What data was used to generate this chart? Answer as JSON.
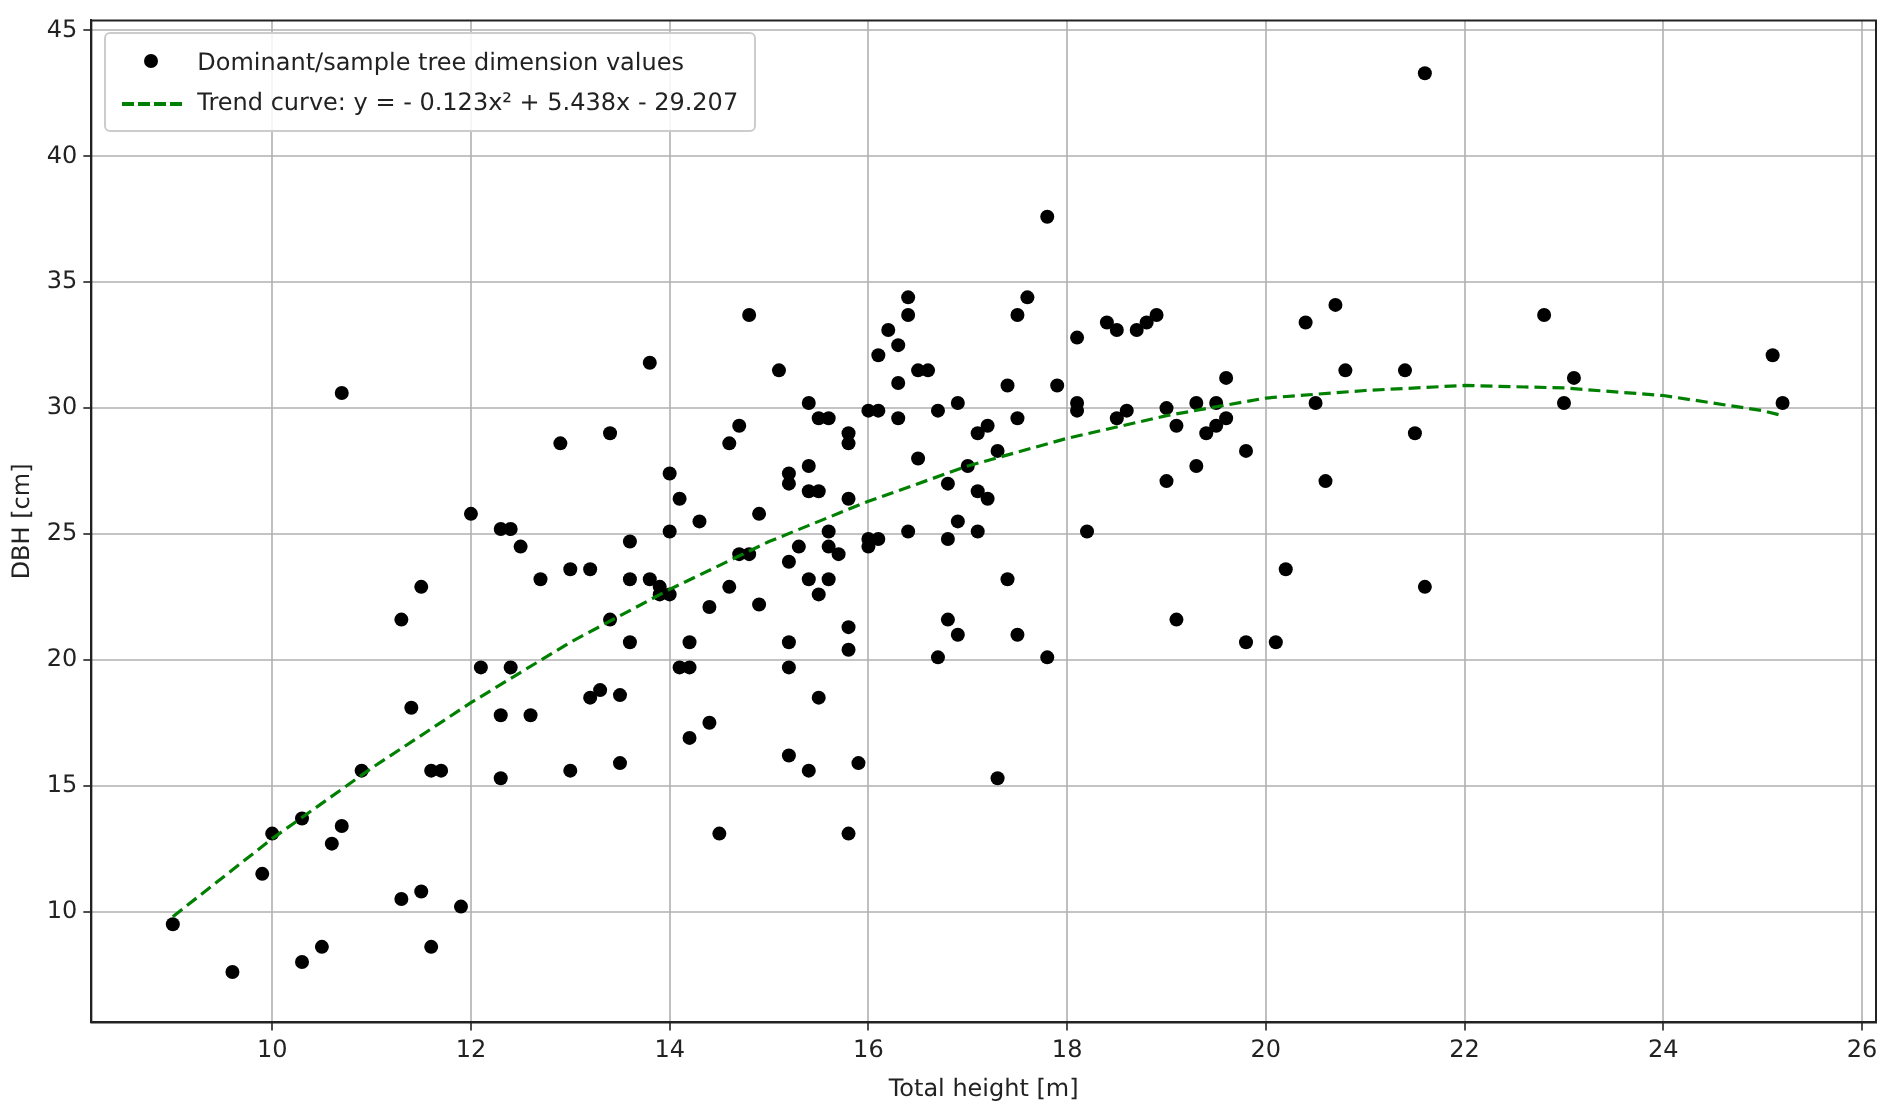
{
  "chart_data": {
    "type": "scatter",
    "xlabel": "Total height [m]",
    "ylabel": "DBH [cm]",
    "xlim": [
      8.18,
      26.14
    ],
    "ylim": [
      5.6,
      45.4
    ],
    "xticks": [
      10,
      12,
      14,
      16,
      18,
      20,
      22,
      24,
      26
    ],
    "yticks": [
      10,
      15,
      20,
      25,
      30,
      35,
      40,
      45
    ],
    "grid": true,
    "legend": "top left",
    "series": [
      {
        "name": "Dominant/sample tree dimension values",
        "color": "#000000",
        "marker": "circle",
        "x": [
          9.0,
          9.6,
          9.9,
          10.0,
          10.3,
          10.3,
          10.5,
          10.6,
          10.7,
          10.7,
          10.9,
          11.3,
          11.3,
          11.4,
          11.5,
          11.5,
          11.6,
          11.6,
          11.7,
          11.9,
          12.0,
          12.1,
          12.3,
          12.3,
          12.3,
          12.4,
          12.4,
          12.5,
          12.6,
          12.7,
          12.9,
          13.0,
          13.0,
          13.2,
          13.2,
          13.3,
          13.4,
          13.4,
          13.5,
          13.5,
          13.6,
          13.6,
          13.6,
          13.8,
          13.8,
          13.9,
          13.9,
          14.0,
          14.0,
          14.0,
          14.1,
          14.1,
          14.2,
          14.2,
          14.2,
          14.3,
          14.4,
          14.4,
          14.5,
          14.6,
          14.6,
          14.7,
          14.7,
          14.8,
          14.8,
          14.9,
          14.9,
          15.1,
          15.2,
          15.2,
          15.2,
          15.2,
          15.2,
          15.2,
          15.3,
          15.4,
          15.4,
          15.4,
          15.4,
          15.4,
          15.5,
          15.5,
          15.5,
          15.5,
          15.6,
          15.6,
          15.6,
          15.6,
          15.7,
          15.8,
          15.8,
          15.8,
          15.8,
          15.8,
          15.8,
          15.9,
          16.0,
          16.0,
          16.0,
          16.1,
          16.1,
          16.1,
          16.2,
          16.3,
          16.3,
          16.3,
          16.4,
          16.4,
          16.4,
          16.5,
          16.5,
          16.6,
          16.7,
          16.7,
          16.8,
          16.8,
          16.8,
          16.9,
          16.9,
          16.9,
          17.0,
          17.1,
          17.1,
          17.1,
          17.2,
          17.2,
          17.3,
          17.3,
          17.4,
          17.4,
          17.5,
          17.5,
          17.5,
          17.6,
          17.8,
          17.8,
          17.9,
          18.1,
          18.1,
          18.1,
          18.2,
          18.4,
          18.5,
          18.5,
          18.6,
          18.7,
          18.8,
          18.9,
          19.0,
          19.0,
          19.1,
          19.1,
          19.3,
          19.3,
          19.4,
          19.5,
          19.5,
          19.6,
          19.6,
          19.8,
          19.8,
          20.1,
          20.2,
          20.4,
          20.5,
          20.6,
          20.7,
          20.8,
          21.4,
          21.5,
          21.6,
          21.6,
          22.8,
          23.0,
          23.1,
          25.1,
          25.2
        ],
        "values": [
          9.5,
          7.6,
          11.5,
          13.1,
          8.0,
          13.7,
          8.6,
          12.7,
          13.4,
          30.6,
          15.6,
          10.5,
          21.6,
          18.1,
          10.8,
          22.9,
          8.6,
          15.6,
          15.6,
          10.2,
          25.8,
          19.7,
          25.2,
          17.8,
          15.3,
          25.2,
          19.7,
          24.5,
          17.8,
          23.2,
          28.6,
          15.6,
          23.6,
          18.5,
          23.6,
          18.8,
          29.0,
          21.6,
          18.6,
          15.9,
          24.7,
          23.2,
          20.7,
          31.8,
          23.2,
          22.9,
          22.6,
          27.4,
          25.1,
          22.6,
          26.4,
          19.7,
          19.7,
          20.7,
          16.9,
          25.5,
          22.1,
          17.5,
          13.1,
          28.6,
          22.9,
          29.3,
          24.2,
          33.7,
          24.2,
          25.8,
          22.2,
          31.5,
          27.4,
          27.0,
          23.9,
          20.7,
          19.7,
          16.2,
          24.5,
          30.2,
          27.7,
          26.7,
          23.2,
          15.6,
          26.7,
          22.6,
          18.5,
          29.6,
          29.6,
          25.1,
          23.2,
          24.5,
          24.2,
          29.0,
          28.6,
          26.4,
          21.3,
          20.4,
          13.1,
          15.9,
          29.9,
          24.5,
          24.8,
          32.1,
          29.9,
          24.8,
          33.1,
          32.5,
          31.0,
          29.6,
          34.4,
          33.7,
          25.1,
          31.5,
          28.0,
          31.5,
          29.9,
          20.1,
          27.0,
          24.8,
          21.6,
          30.2,
          25.5,
          21.0,
          27.7,
          29.0,
          26.7,
          25.1,
          29.3,
          26.4,
          28.3,
          15.3,
          30.9,
          23.2,
          33.7,
          29.6,
          21.0,
          34.4,
          37.6,
          20.1,
          30.9,
          32.8,
          30.2,
          29.9,
          25.1,
          33.4,
          33.1,
          29.6,
          29.9,
          33.1,
          33.4,
          33.7,
          30.0,
          27.1,
          29.3,
          21.6,
          30.2,
          27.7,
          29.0,
          29.3,
          30.2,
          31.2,
          29.6,
          28.3,
          20.7,
          20.7,
          23.6,
          33.4,
          30.2,
          27.1,
          34.1,
          31.5,
          31.5,
          29.0,
          43.3,
          22.9,
          33.7,
          30.2,
          31.2,
          32.1,
          30.2
        ]
      },
      {
        "name": "Trend curve: y = - 0.123x² + 5.438x - 29.207",
        "type": "line",
        "color": "#008000",
        "line_style": "dashed",
        "marker": "none",
        "x": [
          9,
          10,
          11,
          12,
          13,
          14,
          15,
          16,
          17,
          18,
          19,
          20,
          21,
          22,
          23,
          24,
          25,
          25.2
        ],
        "values": [
          9.8,
          12.9,
          15.7,
          18.3,
          20.7,
          22.8,
          24.7,
          26.3,
          27.7,
          28.8,
          29.7,
          30.4,
          30.7,
          30.9,
          30.8,
          30.5,
          29.9,
          29.7
        ]
      }
    ]
  }
}
